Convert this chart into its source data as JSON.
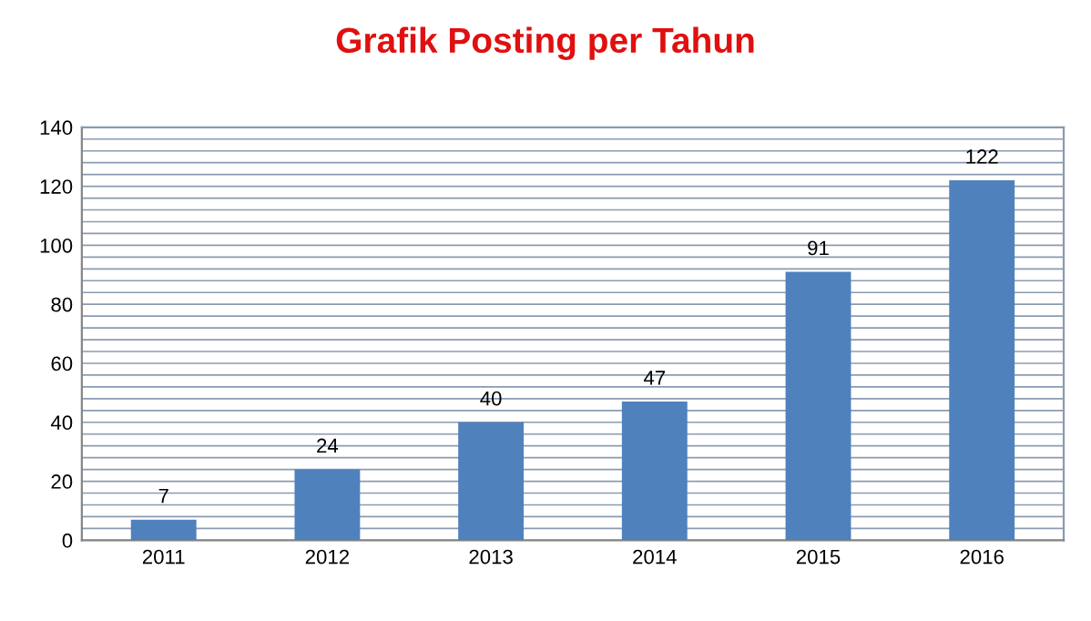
{
  "chart_data": {
    "type": "bar",
    "title": "Grafik Posting per Tahun",
    "categories": [
      "2011",
      "2012",
      "2013",
      "2014",
      "2015",
      "2016"
    ],
    "values": [
      7,
      24,
      40,
      47,
      91,
      122
    ],
    "color": "#4f81bd",
    "ylim": [
      0,
      140
    ],
    "yticks": [
      0,
      {
        "value": 4,
        "label": null
      },
      {
        "value": 8,
        "label": null
      },
      {
        "value": 12,
        "label": null
      },
      {
        "value": 16,
        "label": null
      },
      20,
      {
        "value": 24,
        "label": null
      },
      {
        "value": 28,
        "label": null
      },
      {
        "value": 32,
        "label": null
      },
      {
        "value": 36,
        "label": null
      },
      40,
      {
        "value": 44,
        "label": null
      },
      {
        "value": 48,
        "label": null
      },
      {
        "value": 52,
        "label": null
      },
      {
        "value": 56,
        "label": null
      },
      60,
      {
        "value": 64,
        "label": null
      },
      {
        "value": 68,
        "label": null
      },
      {
        "value": 72,
        "label": null
      },
      {
        "value": 76,
        "label": null
      },
      80,
      {
        "value": 84,
        "label": null
      },
      {
        "value": 88,
        "label": null
      },
      {
        "value": 92,
        "label": null
      },
      {
        "value": 96,
        "label": null
      },
      100,
      {
        "value": 104,
        "label": null
      },
      {
        "value": 108,
        "label": null
      },
      {
        "value": 112,
        "label": null
      },
      {
        "value": 116,
        "label": null
      },
      120,
      {
        "value": 124,
        "label": null
      },
      {
        "value": 128,
        "label": null
      },
      {
        "value": 132,
        "label": null
      },
      {
        "value": 136,
        "label": null
      },
      140
    ],
    "grid": "y",
    "data_labels": true
  }
}
